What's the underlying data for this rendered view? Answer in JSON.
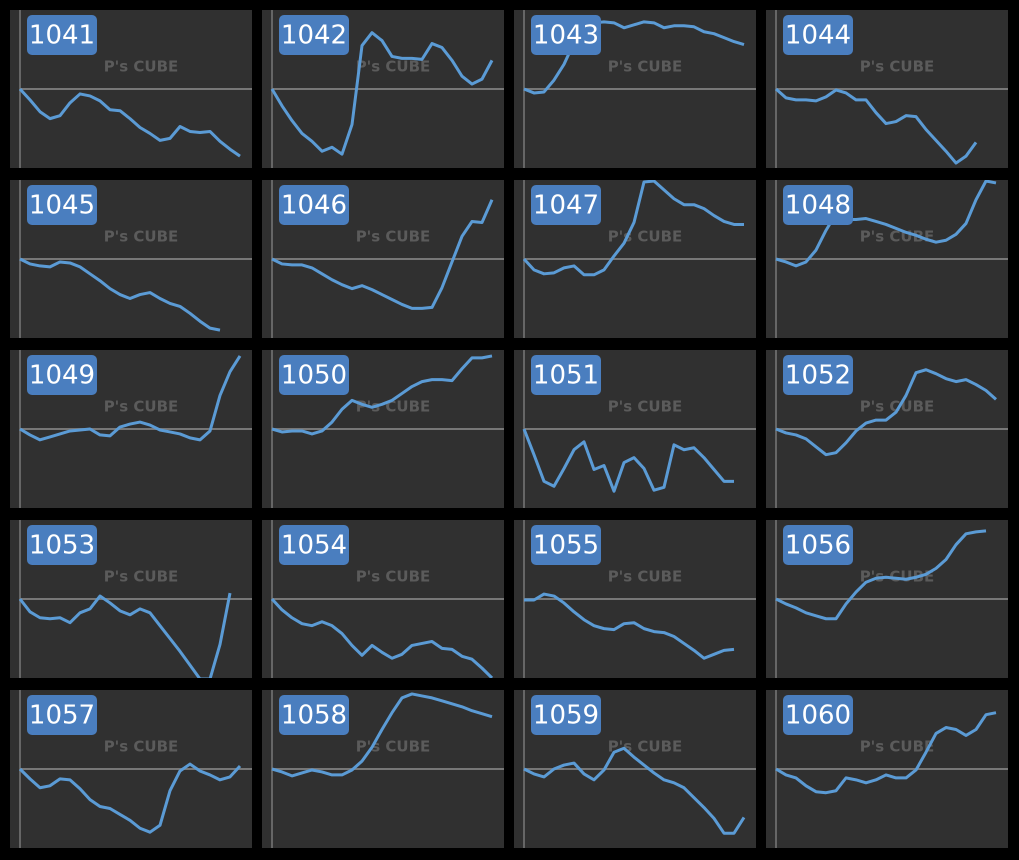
{
  "chart_data": [
    {
      "type": "line",
      "title": "1041",
      "watermark": "P's CUBE",
      "color": "#5b9bd5",
      "ylim": [
        -80,
        80
      ],
      "values": [
        0,
        -11,
        -23,
        -30,
        -27,
        -14,
        -5,
        -7,
        -12,
        -21,
        -22,
        -30,
        -39,
        -45,
        -52,
        -50,
        -38,
        -43,
        -44,
        -43,
        -53,
        -61,
        -68
      ]
    },
    {
      "type": "line",
      "title": "1042",
      "watermark": "P's CUBE",
      "color": "#5b9bd5",
      "ylim": [
        -80,
        80
      ],
      "values": [
        0,
        -17,
        -32,
        -45,
        -53,
        -63,
        -59,
        -66,
        -36,
        44,
        57,
        49,
        33,
        31,
        31,
        30,
        46,
        42,
        29,
        13,
        5,
        10,
        29
      ]
    },
    {
      "type": "line",
      "title": "1043",
      "watermark": "P's CUBE",
      "color": "#5b9bd5",
      "ylim": [
        -80,
        80
      ],
      "values": [
        0,
        -4,
        -3,
        9,
        25,
        47,
        60,
        67,
        68,
        67,
        62,
        65,
        68,
        67,
        62,
        64,
        64,
        63,
        58,
        56,
        52,
        48,
        45
      ]
    },
    {
      "type": "line",
      "title": "1044",
      "watermark": "P's CUBE",
      "color": "#5b9bd5",
      "ylim": [
        -80,
        80
      ],
      "values": [
        0,
        -9,
        -11,
        -11,
        -12,
        -8,
        -1,
        -4,
        -11,
        -11,
        -24,
        -35,
        -33,
        -27,
        -28,
        -41,
        -52,
        -63,
        -75,
        -68,
        -54
      ]
    },
    {
      "type": "line",
      "title": "1045",
      "watermark": "P's CUBE",
      "color": "#5b9bd5",
      "ylim": [
        -80,
        80
      ],
      "values": [
        0,
        -5,
        -7,
        -8,
        -3,
        -4,
        -8,
        -15,
        -22,
        -30,
        -36,
        -40,
        -36,
        -34,
        -40,
        -45,
        -48,
        -55,
        -63,
        -70,
        -72
      ]
    },
    {
      "type": "line",
      "title": "1046",
      "watermark": "P's CUBE",
      "color": "#5b9bd5",
      "ylim": [
        -80,
        80
      ],
      "values": [
        0,
        -5,
        -6,
        -6,
        -9,
        -15,
        -21,
        -26,
        -30,
        -27,
        -31,
        -36,
        -41,
        -46,
        -50,
        -50,
        -49,
        -29,
        -3,
        23,
        38,
        37,
        60
      ]
    },
    {
      "type": "line",
      "title": "1047",
      "watermark": "P's CUBE",
      "color": "#5b9bd5",
      "ylim": [
        -80,
        80
      ],
      "values": [
        0,
        -11,
        -15,
        -14,
        -9,
        -7,
        -16,
        -16,
        -11,
        3,
        16,
        37,
        78,
        79,
        70,
        61,
        55,
        55,
        51,
        44,
        38,
        35,
        35
      ]
    },
    {
      "type": "line",
      "title": "1048",
      "watermark": "P's CUBE",
      "color": "#5b9bd5",
      "ylim": [
        -80,
        80
      ],
      "values": [
        0,
        -3,
        -7,
        -3,
        9,
        29,
        46,
        40,
        40,
        41,
        38,
        35,
        31,
        27,
        24,
        20,
        17,
        19,
        25,
        36,
        60,
        79,
        77
      ]
    },
    {
      "type": "line",
      "title": "1049",
      "watermark": "P's CUBE",
      "color": "#5b9bd5",
      "ylim": [
        -80,
        80
      ],
      "values": [
        0,
        -6,
        -11,
        -8,
        -5,
        -2,
        -1,
        0,
        -6,
        -7,
        2,
        5,
        7,
        4,
        -1,
        -3,
        -5,
        -9,
        -11,
        -2,
        34,
        58,
        74
      ]
    },
    {
      "type": "line",
      "title": "1050",
      "watermark": "P's CUBE",
      "color": "#5b9bd5",
      "ylim": [
        -80,
        80
      ],
      "values": [
        0,
        -3,
        -2,
        -2,
        -5,
        -2,
        7,
        20,
        29,
        25,
        22,
        25,
        29,
        36,
        43,
        48,
        50,
        50,
        49,
        61,
        72,
        72,
        74
      ]
    },
    {
      "type": "line",
      "title": "1051",
      "watermark": "P's CUBE",
      "color": "#5b9bd5",
      "ylim": [
        -80,
        80
      ],
      "values": [
        0,
        -26,
        -53,
        -58,
        -40,
        -21,
        -13,
        -41,
        -37,
        -63,
        -34,
        -29,
        -40,
        -62,
        -59,
        -16,
        -21,
        -19,
        -29,
        -41,
        -53,
        -53
      ]
    },
    {
      "type": "line",
      "title": "1052",
      "watermark": "P's CUBE",
      "color": "#5b9bd5",
      "ylim": [
        -80,
        80
      ],
      "values": [
        0,
        -4,
        -6,
        -10,
        -18,
        -26,
        -24,
        -14,
        -2,
        6,
        9,
        9,
        17,
        34,
        57,
        60,
        56,
        51,
        48,
        50,
        45,
        39,
        30
      ]
    },
    {
      "type": "line",
      "title": "1053",
      "watermark": "P's CUBE",
      "color": "#5b9bd5",
      "ylim": [
        -80,
        80
      ],
      "values": [
        0,
        -13,
        -19,
        -20,
        -19,
        -24,
        -14,
        -10,
        3,
        -4,
        -12,
        -16,
        -10,
        -14,
        -27,
        -40,
        -53,
        -67,
        -81,
        -81,
        -46,
        6
      ]
    },
    {
      "type": "line",
      "title": "1054",
      "watermark": "P's CUBE",
      "color": "#5b9bd5",
      "ylim": [
        -80,
        80
      ],
      "values": [
        0,
        -11,
        -19,
        -25,
        -27,
        -23,
        -27,
        -35,
        -47,
        -57,
        -47,
        -54,
        -60,
        -56,
        -47,
        -45,
        -43,
        -50,
        -51,
        -58,
        -61,
        -70,
        -80
      ]
    },
    {
      "type": "line",
      "title": "1055",
      "watermark": "P's CUBE",
      "color": "#5b9bd5",
      "ylim": [
        -80,
        80
      ],
      "values": [
        -1,
        -1,
        5,
        3,
        -4,
        -13,
        -21,
        -27,
        -30,
        -31,
        -25,
        -24,
        -30,
        -33,
        -34,
        -38,
        -45,
        -52,
        -60,
        -56,
        -52,
        -51
      ]
    },
    {
      "type": "line",
      "title": "1056",
      "watermark": "P's CUBE",
      "color": "#5b9bd5",
      "ylim": [
        -80,
        80
      ],
      "values": [
        0,
        -5,
        -9,
        -14,
        -17,
        -20,
        -20,
        -5,
        7,
        17,
        21,
        22,
        21,
        20,
        22,
        25,
        31,
        40,
        55,
        66,
        68,
        69
      ]
    },
    {
      "type": "line",
      "title": "1057",
      "watermark": "P's CUBE",
      "color": "#5b9bd5",
      "ylim": [
        -80,
        80
      ],
      "values": [
        0,
        -10,
        -19,
        -17,
        -10,
        -11,
        -20,
        -31,
        -38,
        -40,
        -46,
        -52,
        -60,
        -64,
        -57,
        -22,
        -2,
        5,
        -2,
        -6,
        -11,
        -8,
        3
      ]
    },
    {
      "type": "line",
      "title": "1058",
      "watermark": "P's CUBE",
      "color": "#5b9bd5",
      "ylim": [
        -80,
        80
      ],
      "values": [
        0,
        -3,
        -7,
        -4,
        -1,
        -3,
        -6,
        -6,
        -1,
        8,
        22,
        40,
        57,
        72,
        76,
        74,
        72,
        69,
        66,
        63,
        59,
        56,
        53
      ]
    },
    {
      "type": "line",
      "title": "1059",
      "watermark": "P's CUBE",
      "color": "#5b9bd5",
      "ylim": [
        -80,
        80
      ],
      "values": [
        0,
        -5,
        -8,
        0,
        4,
        6,
        -5,
        -11,
        -1,
        17,
        21,
        12,
        4,
        -4,
        -11,
        -14,
        -19,
        -29,
        -39,
        -50,
        -65,
        -65,
        -49
      ]
    },
    {
      "type": "line",
      "title": "1060",
      "watermark": "P's CUBE",
      "color": "#5b9bd5",
      "ylim": [
        -80,
        80
      ],
      "values": [
        0,
        -6,
        -9,
        -17,
        -23,
        -24,
        -22,
        -9,
        -11,
        -14,
        -11,
        -6,
        -9,
        -9,
        -1,
        17,
        36,
        42,
        40,
        34,
        40,
        55,
        57
      ]
    }
  ]
}
